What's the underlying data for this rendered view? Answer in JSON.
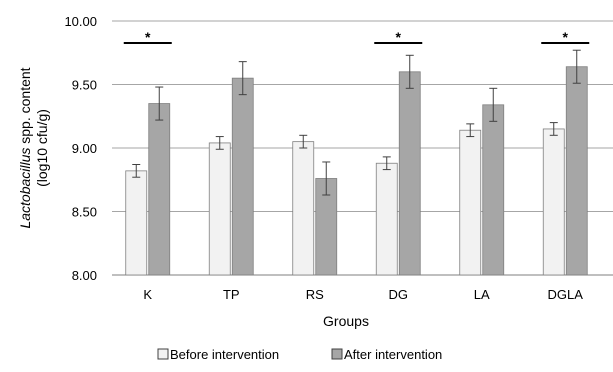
{
  "chart_data": {
    "type": "bar",
    "xlabel": "Groups",
    "ylabel_italic": "Lactobacillus",
    "ylabel_rest": " spp. content",
    "ylabel_line2": "(log10 cfu/g)",
    "categories": [
      "K",
      "TP",
      "RS",
      "DG",
      "LA",
      "DGLA"
    ],
    "ylim": [
      8.0,
      10.0
    ],
    "yticks": [
      8.0,
      8.5,
      9.0,
      9.5,
      10.0
    ],
    "ytick_labels": [
      "8.00",
      "8.50",
      "9.00",
      "9.50",
      "10.00"
    ],
    "grid": true,
    "legend_position": "bottom",
    "series": [
      {
        "name": "Before intervention",
        "color": "#f2f2f2",
        "values": [
          8.82,
          9.04,
          9.05,
          8.88,
          9.14,
          9.15
        ],
        "errors": [
          0.05,
          0.05,
          0.05,
          0.05,
          0.05,
          0.05
        ]
      },
      {
        "name": "After intervention",
        "color": "#a6a6a6",
        "values": [
          9.35,
          9.55,
          8.76,
          9.6,
          9.34,
          9.64
        ],
        "errors": [
          0.13,
          0.13,
          0.13,
          0.13,
          0.13,
          0.13
        ]
      }
    ],
    "significance": [
      {
        "category_index": 0,
        "label": "*"
      },
      {
        "category_index": 3,
        "label": "*"
      },
      {
        "category_index": 5,
        "label": "*"
      }
    ]
  }
}
